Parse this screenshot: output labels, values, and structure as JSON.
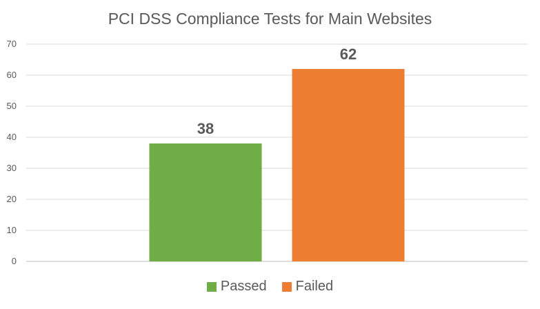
{
  "chart_data": {
    "type": "bar",
    "title": "PCI DSS Compliance Tests for Main Websites",
    "categories": [
      "Passed",
      "Failed"
    ],
    "values": [
      38,
      62
    ],
    "colors": [
      "#70ad47",
      "#ed7d31"
    ],
    "ylim": [
      0,
      70
    ],
    "yticks": [
      0,
      10,
      20,
      30,
      40,
      50,
      60,
      70
    ],
    "grid": true,
    "data_labels": [
      "38",
      "62"
    ],
    "legend": {
      "position": "bottom",
      "entries": [
        {
          "label": "Passed",
          "color": "#70ad47"
        },
        {
          "label": "Failed",
          "color": "#ed7d31"
        }
      ]
    }
  }
}
